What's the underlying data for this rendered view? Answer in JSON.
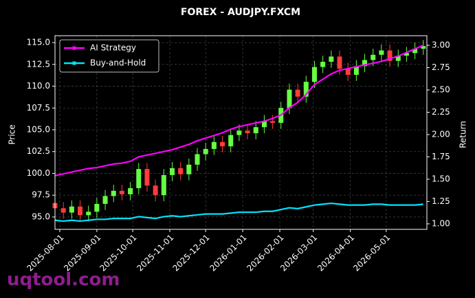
{
  "chart_data": {
    "type": "candlestick",
    "title": "FOREX - AUDJPY.FXCM",
    "ylabel": "Price",
    "y2label": "Return",
    "watermark": "uqtool.com",
    "up_color": "#66ff44",
    "down_color": "#ff3b3b",
    "grid": true,
    "legend": "upper left",
    "x": [
      "2025-07-28",
      "2025-08-04",
      "2025-08-11",
      "2025-08-18",
      "2025-08-25",
      "2025-09-01",
      "2025-09-08",
      "2025-09-15",
      "2025-09-22",
      "2025-09-29",
      "2025-10-06",
      "2025-10-13",
      "2025-10-20",
      "2025-10-27",
      "2025-11-03",
      "2025-11-10",
      "2025-11-17",
      "2025-11-24",
      "2025-12-01",
      "2025-12-08",
      "2025-12-15",
      "2025-12-22",
      "2025-12-29",
      "2026-01-05",
      "2026-01-12",
      "2026-01-19",
      "2026-01-26",
      "2026-02-02",
      "2026-02-09",
      "2026-02-16",
      "2026-02-23",
      "2026-03-02",
      "2026-03-09",
      "2026-03-16",
      "2026-03-23",
      "2026-03-30",
      "2026-04-06",
      "2026-04-13",
      "2026-04-20",
      "2026-04-27",
      "2026-05-04",
      "2026-05-11",
      "2026-05-18",
      "2026-05-25",
      "2026-06-01"
    ],
    "open": [
      96.6,
      96.0,
      95.5,
      96.2,
      95.2,
      95.6,
      96.5,
      97.4,
      98.0,
      97.6,
      98.3,
      100.5,
      98.6,
      97.5,
      99.8,
      100.6,
      99.9,
      101.0,
      102.2,
      102.8,
      103.6,
      103.1,
      104.4,
      104.9,
      104.6,
      105.3,
      106.0,
      105.8,
      107.5,
      109.6,
      108.8,
      110.5,
      112.2,
      112.8,
      113.4,
      112.0,
      111.3,
      112.3,
      113.0,
      113.6,
      114.1,
      112.9,
      113.5,
      113.8,
      114.3
    ],
    "high": [
      97.3,
      96.7,
      96.9,
      96.9,
      96.3,
      97.2,
      98.1,
      98.7,
      98.7,
      99.0,
      101.2,
      101.2,
      99.3,
      100.5,
      101.3,
      101.3,
      101.7,
      102.9,
      103.5,
      104.3,
      104.3,
      105.1,
      105.6,
      105.6,
      106.0,
      106.7,
      106.7,
      108.2,
      110.3,
      110.3,
      111.2,
      112.9,
      113.5,
      114.1,
      114.1,
      112.7,
      113.0,
      113.7,
      114.3,
      114.8,
      114.8,
      114.2,
      114.5,
      115.0,
      115.3
    ],
    "low": [
      95.3,
      94.8,
      94.8,
      94.5,
      94.5,
      94.9,
      95.8,
      96.7,
      96.9,
      96.9,
      97.6,
      97.9,
      96.8,
      96.8,
      99.1,
      99.2,
      99.2,
      100.3,
      101.5,
      102.1,
      102.4,
      102.4,
      103.7,
      103.9,
      103.9,
      104.6,
      105.1,
      105.1,
      106.8,
      108.1,
      108.1,
      109.8,
      111.5,
      112.1,
      111.3,
      110.6,
      110.6,
      111.6,
      112.3,
      112.9,
      112.2,
      112.2,
      112.8,
      113.1,
      113.6
    ],
    "close": [
      96.0,
      95.5,
      96.2,
      95.2,
      95.6,
      96.5,
      97.4,
      98.0,
      97.6,
      98.3,
      100.5,
      98.6,
      97.5,
      99.8,
      100.6,
      99.9,
      101.0,
      102.2,
      102.8,
      103.6,
      103.1,
      104.4,
      104.9,
      104.6,
      105.3,
      106.0,
      105.8,
      107.5,
      109.6,
      108.8,
      110.5,
      112.2,
      112.8,
      113.4,
      112.0,
      111.3,
      112.3,
      113.0,
      113.6,
      114.1,
      112.9,
      113.5,
      113.8,
      114.3,
      114.6
    ],
    "series": [
      {
        "name": "AI Strategy",
        "color": "#ff00ff",
        "axis": "y2",
        "values": [
          1.54,
          1.56,
          1.58,
          1.6,
          1.62,
          1.63,
          1.65,
          1.67,
          1.68,
          1.7,
          1.75,
          1.77,
          1.79,
          1.81,
          1.83,
          1.86,
          1.89,
          1.93,
          1.96,
          1.99,
          2.02,
          2.06,
          2.09,
          2.11,
          2.13,
          2.15,
          2.18,
          2.22,
          2.3,
          2.36,
          2.45,
          2.56,
          2.62,
          2.68,
          2.72,
          2.74,
          2.76,
          2.78,
          2.8,
          2.82,
          2.85,
          2.88,
          2.92,
          2.96,
          3.0
        ]
      },
      {
        "name": "Buy-and-Hold",
        "color": "#00e5ff",
        "axis": "y2",
        "values": [
          1.04,
          1.03,
          1.04,
          1.03,
          1.04,
          1.05,
          1.05,
          1.06,
          1.06,
          1.06,
          1.08,
          1.07,
          1.06,
          1.08,
          1.09,
          1.08,
          1.09,
          1.1,
          1.11,
          1.11,
          1.11,
          1.12,
          1.13,
          1.13,
          1.13,
          1.14,
          1.14,
          1.16,
          1.18,
          1.17,
          1.19,
          1.21,
          1.22,
          1.23,
          1.22,
          1.21,
          1.21,
          1.21,
          1.22,
          1.22,
          1.21,
          1.21,
          1.21,
          1.21,
          1.22
        ]
      }
    ],
    "xlim": [
      "2025-07-28",
      "2026-06-04"
    ],
    "xticks": [
      "2025-08-01",
      "2025-09-01",
      "2025-10-01",
      "2025-11-01",
      "2025-12-01",
      "2026-01-01",
      "2026-02-01",
      "2026-03-01",
      "2026-04-01",
      "2026-05-01"
    ],
    "ylim": [
      93.58,
      115.79
    ],
    "yticks": [
      {
        "value": 95,
        "label": "95.0"
      },
      {
        "value": 97.5,
        "label": "97.5"
      },
      {
        "value": 100,
        "label": "100.0"
      },
      {
        "value": 102.5,
        "label": "102.5"
      },
      {
        "value": 105,
        "label": "105.0"
      },
      {
        "value": 107.5,
        "label": "107.5"
      },
      {
        "value": 110,
        "label": "110.0"
      },
      {
        "value": 112.5,
        "label": "112.5"
      },
      {
        "value": 115,
        "label": "115.0"
      }
    ],
    "y2lim": [
      0.938,
      3.108
    ],
    "y2ticks": [
      {
        "value": 1,
        "label": "1.00"
      },
      {
        "value": 1.25,
        "label": "1.25"
      },
      {
        "value": 1.5,
        "label": "1.50"
      },
      {
        "value": 1.75,
        "label": "1.75"
      },
      {
        "value": 2,
        "label": "2.00"
      },
      {
        "value": 2.25,
        "label": "2.25"
      },
      {
        "value": 2.5,
        "label": "2.50"
      },
      {
        "value": 2.75,
        "label": "2.75"
      },
      {
        "value": 3,
        "label": "3.00"
      }
    ]
  }
}
